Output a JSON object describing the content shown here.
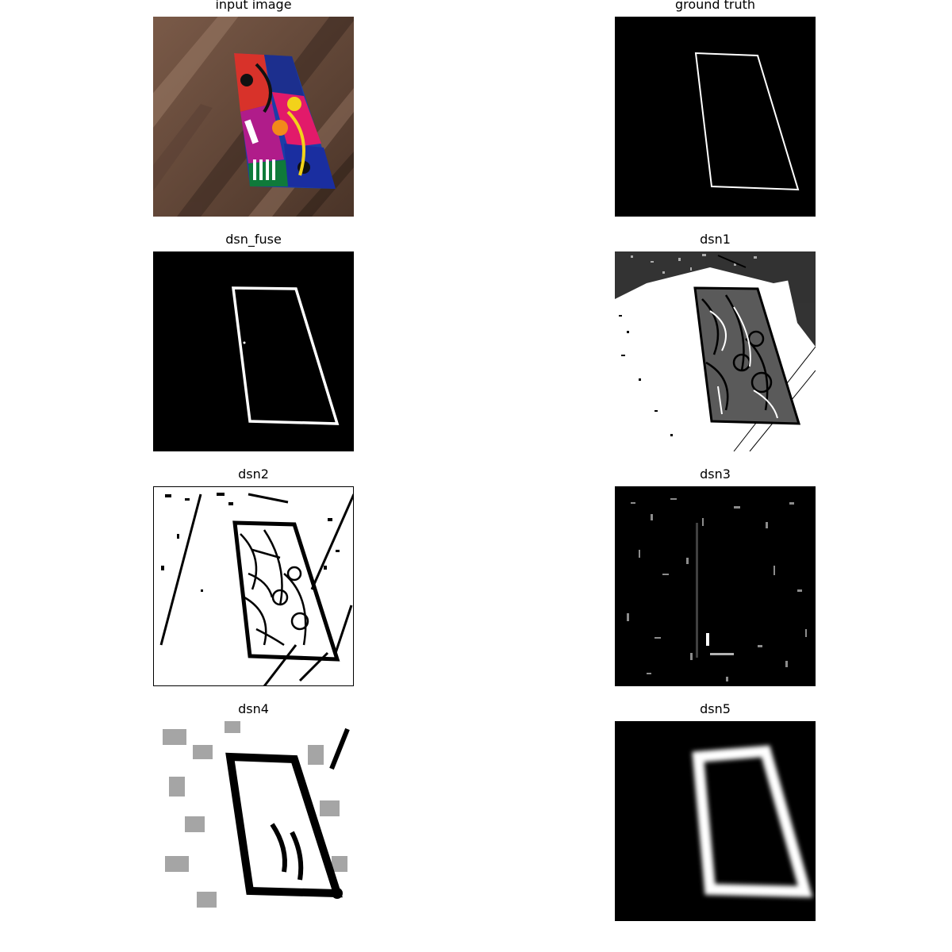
{
  "figure": {
    "panels": [
      {
        "title": "input image"
      },
      {
        "title": "ground truth"
      },
      {
        "title": "dsn_fuse"
      },
      {
        "title": "dsn1"
      },
      {
        "title": "dsn2"
      },
      {
        "title": "dsn3"
      },
      {
        "title": "dsn4"
      },
      {
        "title": "dsn5"
      }
    ]
  }
}
